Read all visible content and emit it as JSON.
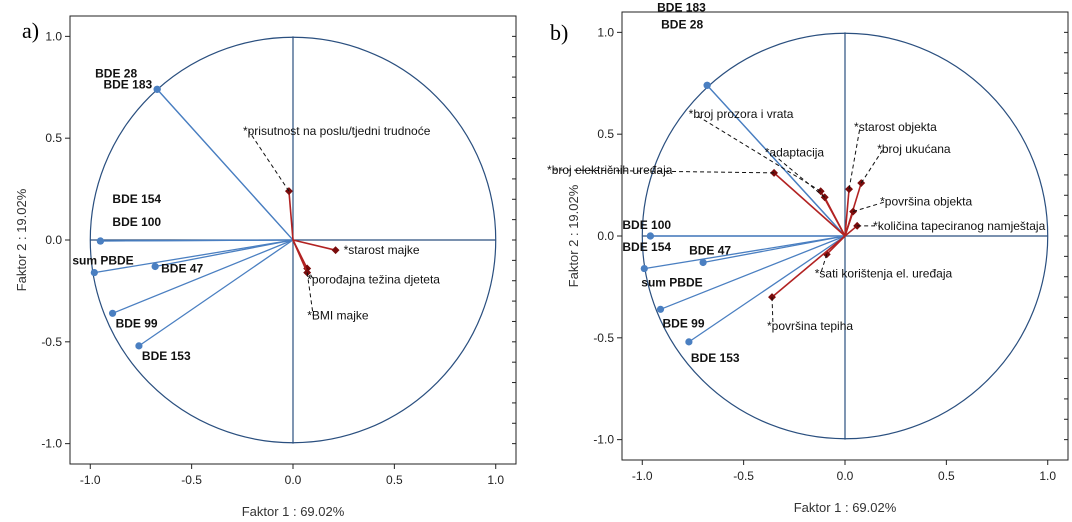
{
  "chart_data": [
    {
      "type": "scatter",
      "panel_label": "a)",
      "xlabel": "Faktor 1 : 69.02%",
      "ylabel": "Faktor 2 : 19.02%",
      "xlim": [
        -1.1,
        1.1
      ],
      "ylim": [
        -1.1,
        1.1
      ],
      "xticks": [
        "-1.0",
        "-0.5",
        "0.0",
        "0.5",
        "1.0"
      ],
      "yticks": [
        "1.0",
        "0.5",
        "0.0",
        "-0.5",
        "-1.0"
      ],
      "series": [
        {
          "name": "",
          "color": "#4a7fc1",
          "points": [
            {
              "label": "BDE 28",
              "x": -0.67,
              "y": 0.74
            },
            {
              "label": "BDE 183",
              "x": -0.67,
              "y": 0.74
            },
            {
              "label": "BDE 154",
              "x": -0.95,
              "y": -0.005
            },
            {
              "label": "BDE 100",
              "x": -0.95,
              "y": -0.005
            },
            {
              "label": "sum PBDE",
              "x": -0.98,
              "y": -0.16
            },
            {
              "label": "BDE 47",
              "x": -0.68,
              "y": -0.13
            },
            {
              "label": "BDE 99",
              "x": -0.89,
              "y": -0.36
            },
            {
              "label": "BDE 153",
              "x": -0.76,
              "y": -0.52
            }
          ]
        },
        {
          "name": "",
          "color": "#b22222",
          "points": [
            {
              "label": "*prisutnost na poslu/tjedni trudnoće",
              "x": -0.02,
              "y": 0.24
            },
            {
              "label": "*starost majke",
              "x": 0.21,
              "y": -0.05
            },
            {
              "label": "*porođajna težina djeteta",
              "x": 0.07,
              "y": -0.14
            },
            {
              "label": "*BMI majke",
              "x": 0.07,
              "y": -0.16
            }
          ]
        }
      ]
    },
    {
      "type": "scatter",
      "panel_label": "b)",
      "xlabel": "Faktor 1 : 69.02%",
      "ylabel": "Faktor 2 : 19.02%",
      "xlim": [
        -1.1,
        1.1
      ],
      "ylim": [
        -1.1,
        1.1
      ],
      "xticks": [
        "-1.0",
        "-0.5",
        "0.0",
        "0.5",
        "1.0"
      ],
      "yticks": [
        "1.0",
        "0.5",
        "0.0",
        "-0.5",
        "-1.0"
      ],
      "series": [
        {
          "name": "",
          "color": "#4a7fc1",
          "points": [
            {
              "label": "BDE 183",
              "x": -0.68,
              "y": 0.74
            },
            {
              "label": "BDE 28",
              "x": -0.68,
              "y": 0.74
            },
            {
              "label": "BDE 100",
              "x": -0.96,
              "y": 0.0
            },
            {
              "label": "BDE 154",
              "x": -0.96,
              "y": 0.0
            },
            {
              "label": "BDE 47",
              "x": -0.7,
              "y": -0.13
            },
            {
              "label": "sum PBDE",
              "x": -0.99,
              "y": -0.16
            },
            {
              "label": "BDE 99",
              "x": -0.91,
              "y": -0.36
            },
            {
              "label": "BDE 153",
              "x": -0.77,
              "y": -0.52
            }
          ]
        },
        {
          "name": "",
          "color": "#b22222",
          "points": [
            {
              "label": "*broj prozora i vrata",
              "x": -0.12,
              "y": 0.22
            },
            {
              "label": "*adaptacija",
              "x": -0.1,
              "y": 0.19
            },
            {
              "label": "*starost objekta",
              "x": 0.02,
              "y": 0.23
            },
            {
              "label": "*broj ukućana",
              "x": 0.08,
              "y": 0.26
            },
            {
              "label": "*broj električnih uređaja",
              "x": -0.35,
              "y": 0.31
            },
            {
              "label": "*površina objekta",
              "x": 0.04,
              "y": 0.12
            },
            {
              "label": "*količina tapeciranog namještaja",
              "x": 0.06,
              "y": 0.05
            },
            {
              "label": "*sati korištenja el. uređaja",
              "x": -0.09,
              "y": -0.09
            },
            {
              "label": "*površina tepiha",
              "x": -0.36,
              "y": -0.3
            }
          ]
        }
      ]
    }
  ]
}
